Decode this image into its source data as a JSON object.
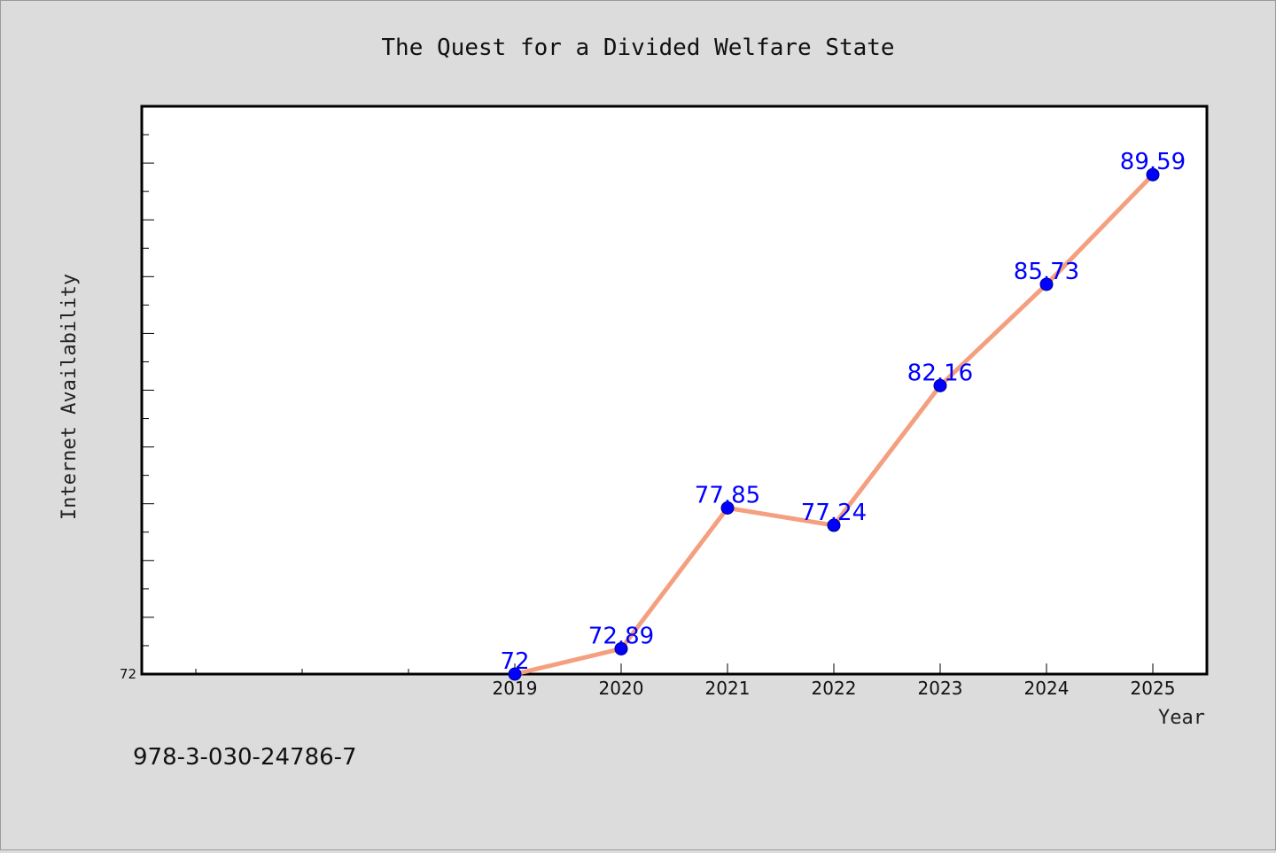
{
  "chart_data": {
    "type": "line",
    "title": "The Quest for a Divided Welfare State",
    "xlabel": "Year",
    "ylabel": "Internet Availability",
    "x": [
      "2019",
      "2020",
      "2021",
      "2022",
      "2023",
      "2024",
      "2025"
    ],
    "values": [
      72,
      72.89,
      77.85,
      77.24,
      82.16,
      85.73,
      89.59
    ],
    "data_labels": [
      "72",
      "72.89",
      "77.85",
      "77.24",
      "82.16",
      "85.73",
      "89.59"
    ],
    "y_tick_labels": [
      "72"
    ],
    "ylim": [
      72,
      92
    ],
    "grid": false,
    "line_color": "#f4a080",
    "marker_color": "#0000ff",
    "label_color": "#0000ff"
  },
  "footer_text": "978-3-030-24786-7"
}
